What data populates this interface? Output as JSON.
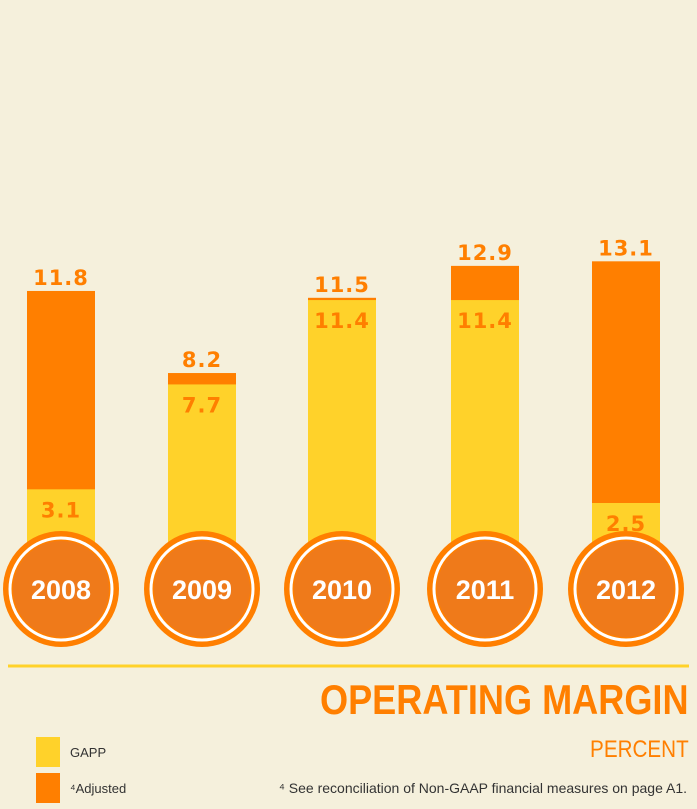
{
  "colors": {
    "background": "#f5f0dc",
    "gaap": "#ffd22a",
    "adjusted": "#ff7f00",
    "year_circle_ring": "#ff7f00",
    "year_circle_fill": "#ef7a1a",
    "year_text": "#ffffff",
    "divider": "#ffd22a",
    "footnote_text": "#333333"
  },
  "title": "OPERATING MARGIN",
  "subtitle": "PERCENT",
  "footnote": "⁴ See reconciliation of Non-GAAP financial measures on page A1.",
  "legend": [
    {
      "label": "GAPP",
      "color": "#ffd22a"
    },
    {
      "label": "⁴Adjusted",
      "color": "#ff7f00"
    }
  ],
  "chart_data": {
    "type": "bar",
    "categories": [
      "2008",
      "2009",
      "2010",
      "2011",
      "2012"
    ],
    "series": [
      {
        "name": "GAPP",
        "values": [
          3.1,
          7.7,
          11.4,
          11.4,
          2.5
        ]
      },
      {
        "name": "⁴Adjusted",
        "values": [
          11.8,
          8.2,
          11.5,
          12.9,
          13.1
        ]
      }
    ],
    "value_labels": {
      "gaap": [
        "3.1",
        "7.7",
        "11.4",
        "11.4",
        "2.5"
      ],
      "adjusted": [
        "11.8",
        "8.2",
        "11.5",
        "12.9",
        "13.1"
      ]
    },
    "title": "OPERATING MARGIN",
    "subtitle": "PERCENT",
    "xlabel": "",
    "ylabel": "",
    "grid": false,
    "legend_position": "bottom-left"
  }
}
